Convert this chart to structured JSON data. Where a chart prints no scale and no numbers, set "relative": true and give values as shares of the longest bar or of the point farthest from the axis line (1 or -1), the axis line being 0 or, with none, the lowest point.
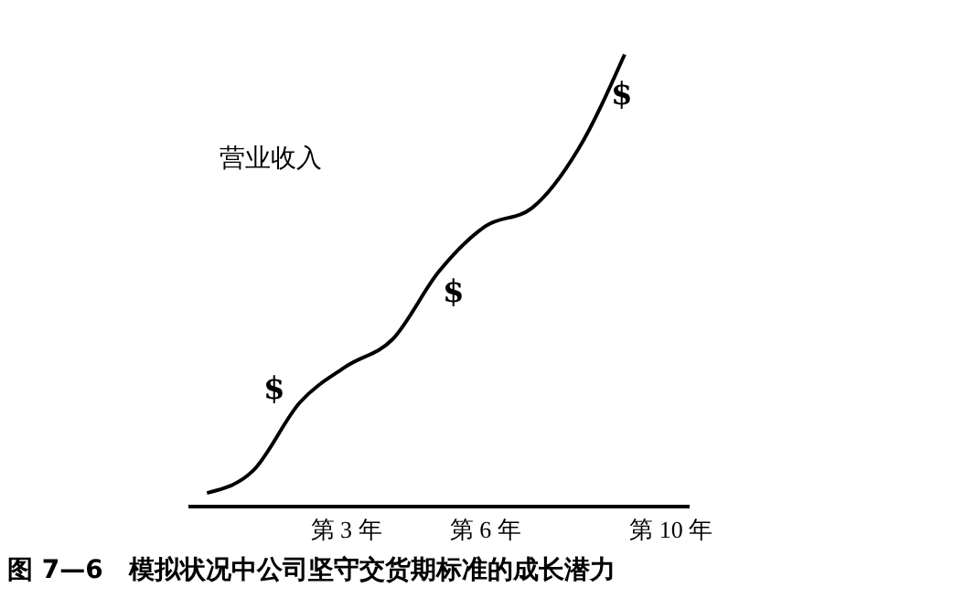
{
  "chart_data": {
    "type": "line",
    "relative": true,
    "title": "图 7—6　模拟状况中公司坚守交货期标准的成长潜力",
    "ylabel": "营业收入",
    "categories": [
      null,
      null,
      null,
      "第 3 年",
      null,
      null,
      "第 6 年",
      null,
      null,
      null,
      "第 10 年"
    ],
    "values": [
      0.03,
      0.08,
      0.23,
      0.31,
      0.37,
      0.52,
      0.62,
      0.66,
      0.79,
      1,
      null
    ],
    "color": "#000000",
    "marker": "none",
    "grid": false,
    "legend": false,
    "annotations": [
      "$",
      "$",
      "$"
    ]
  }
}
